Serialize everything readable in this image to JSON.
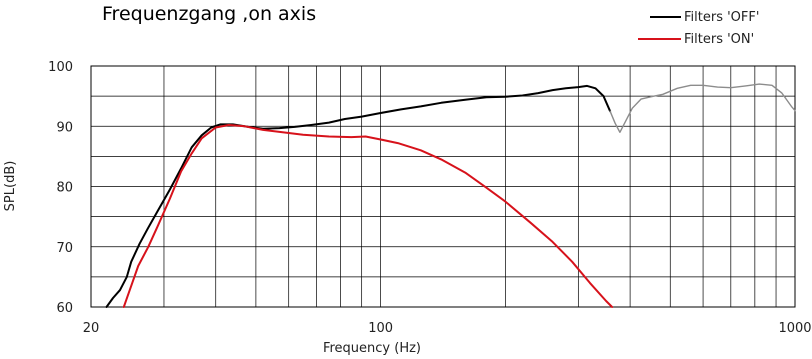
{
  "chart_data": {
    "type": "line",
    "title": "Frequenzgang ,on axis",
    "xlabel": "Frequency (Hz)",
    "ylabel": "SPL(dB)",
    "x_scale": "log",
    "xlim": [
      20,
      1000
    ],
    "ylim": [
      60,
      100
    ],
    "x_ticks": [
      {
        "value": 20,
        "label": "20"
      },
      {
        "value": 100,
        "label": "100"
      },
      {
        "value": 1000,
        "label": "1000"
      }
    ],
    "y_ticks": [
      {
        "value": 100,
        "label": "100"
      },
      {
        "value": 90,
        "label": "90"
      },
      {
        "value": 80,
        "label": "80"
      },
      {
        "value": 70,
        "label": "70"
      },
      {
        "value": 60,
        "label": "60"
      }
    ],
    "grid": true,
    "legend_position": "top-right",
    "legend": [
      {
        "label": "Filters 'OFF'",
        "color": "#000000"
      },
      {
        "label": "Filters 'ON'",
        "color": "#d7121b"
      }
    ],
    "series": [
      {
        "name": "Filters 'OFF'",
        "color": "#000000",
        "points": [
          [
            21.8,
            60.0
          ],
          [
            22.6,
            61.5
          ],
          [
            23.5,
            62.8
          ],
          [
            24.4,
            65.0
          ],
          [
            25.0,
            67.5
          ],
          [
            26.2,
            70.5
          ],
          [
            27.4,
            73.0
          ],
          [
            29.0,
            76.0
          ],
          [
            31.0,
            79.5
          ],
          [
            33.0,
            83.0
          ],
          [
            35.0,
            86.5
          ],
          [
            37.0,
            88.5
          ],
          [
            39.0,
            89.8
          ],
          [
            41.0,
            90.3
          ],
          [
            44.0,
            90.3
          ],
          [
            48.0,
            89.9
          ],
          [
            52.0,
            89.6
          ],
          [
            57.0,
            89.7
          ],
          [
            62.0,
            89.9
          ],
          [
            68.0,
            90.2
          ],
          [
            75.0,
            90.6
          ],
          [
            82.0,
            91.2
          ],
          [
            90.0,
            91.6
          ],
          [
            100.0,
            92.2
          ],
          [
            112.0,
            92.8
          ],
          [
            125.0,
            93.3
          ],
          [
            140.0,
            93.9
          ],
          [
            160.0,
            94.4
          ],
          [
            180.0,
            94.8
          ],
          [
            200.0,
            94.9
          ],
          [
            220.0,
            95.1
          ],
          [
            240.0,
            95.5
          ],
          [
            260.0,
            96.0
          ],
          [
            280.0,
            96.3
          ],
          [
            300.0,
            96.5
          ],
          [
            315.0,
            96.7
          ],
          [
            330.0,
            96.3
          ],
          [
            345.0,
            95.0
          ],
          [
            358.0,
            92.5
          ]
        ]
      },
      {
        "name": "Filters 'ON'",
        "color": "#d7121b",
        "points": [
          [
            24.0,
            60.0
          ],
          [
            25.0,
            63.5
          ],
          [
            26.0,
            66.8
          ],
          [
            27.5,
            70.0
          ],
          [
            29.0,
            73.5
          ],
          [
            31.0,
            78.0
          ],
          [
            33.0,
            82.5
          ],
          [
            35.0,
            85.5
          ],
          [
            37.0,
            88.0
          ],
          [
            40.0,
            89.8
          ],
          [
            43.0,
            90.2
          ],
          [
            47.0,
            90.0
          ],
          [
            52.0,
            89.4
          ],
          [
            58.0,
            89.0
          ],
          [
            65.0,
            88.6
          ],
          [
            75.0,
            88.3
          ],
          [
            85.0,
            88.2
          ],
          [
            92.0,
            88.3
          ],
          [
            100.0,
            87.8
          ],
          [
            110.0,
            87.2
          ],
          [
            125.0,
            86.0
          ],
          [
            140.0,
            84.5
          ],
          [
            160.0,
            82.3
          ],
          [
            180.0,
            79.8
          ],
          [
            200.0,
            77.5
          ],
          [
            230.0,
            74.0
          ],
          [
            260.0,
            70.8
          ],
          [
            290.0,
            67.5
          ],
          [
            320.0,
            64.0
          ],
          [
            350.0,
            61.0
          ],
          [
            362.0,
            60.0
          ]
        ]
      },
      {
        "name": "",
        "color": "#8c8c8c",
        "points": [
          [
            358.0,
            92.5
          ],
          [
            368.0,
            90.5
          ],
          [
            378.0,
            89.0
          ],
          [
            390.0,
            90.8
          ],
          [
            405.0,
            93.0
          ],
          [
            425.0,
            94.5
          ],
          [
            450.0,
            94.9
          ],
          [
            480.0,
            95.3
          ],
          [
            520.0,
            96.3
          ],
          [
            560.0,
            96.8
          ],
          [
            600.0,
            96.8
          ],
          [
            650.0,
            96.5
          ],
          [
            700.0,
            96.4
          ],
          [
            760.0,
            96.7
          ],
          [
            820.0,
            97.0
          ],
          [
            880.0,
            96.8
          ],
          [
            930.0,
            95.5
          ],
          [
            980.0,
            93.3
          ],
          [
            1000.0,
            92.6
          ]
        ]
      }
    ]
  }
}
